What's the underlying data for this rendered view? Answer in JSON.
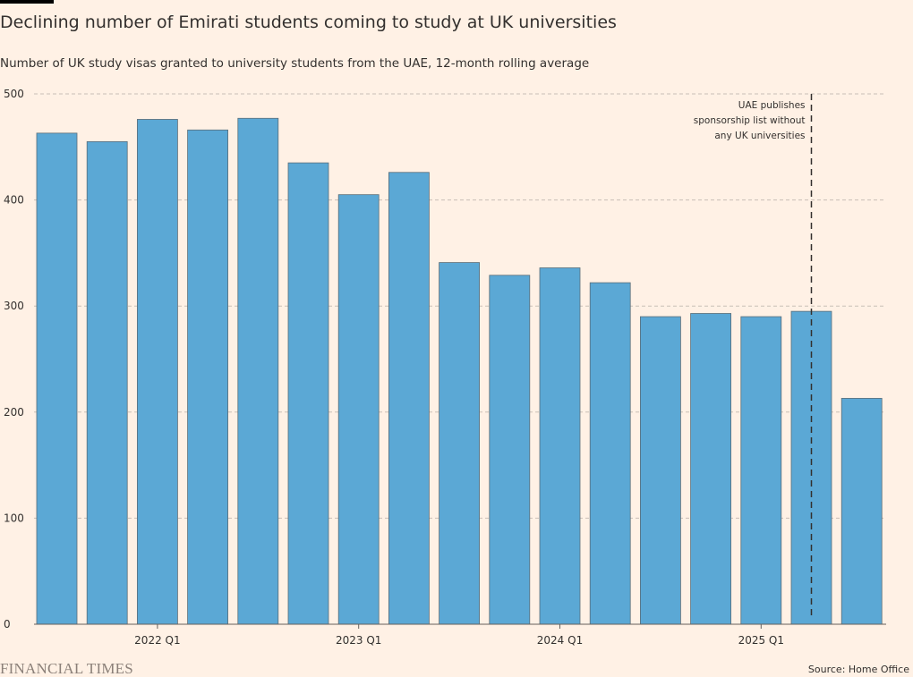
{
  "title": "Declining number of Emirati students coming to study at UK universities",
  "subtitle": "Number of UK study visas granted to university students from the UAE, 12-month rolling average",
  "source": "Source: Home Office",
  "logo": "FINANCIAL TIMES",
  "chart_data": {
    "type": "bar",
    "categories": [
      "2021 Q3",
      "2021 Q4",
      "2022 Q1",
      "2022 Q2",
      "2022 Q3",
      "2022 Q4",
      "2023 Q1",
      "2023 Q2",
      "2023 Q3",
      "2023 Q4",
      "2024 Q1",
      "2024 Q2",
      "2024 Q3",
      "2024 Q4",
      "2025 Q1",
      "2025 Q2",
      "2025 Q3"
    ],
    "values": [
      463,
      455,
      476,
      466,
      477,
      435,
      405,
      426,
      341,
      329,
      336,
      322,
      290,
      293,
      290,
      295,
      213
    ],
    "x_tick_labels": [
      "2022 Q1",
      "2023 Q1",
      "2024 Q1",
      "2025 Q1"
    ],
    "y_ticks": [
      0,
      100,
      200,
      300,
      400,
      500
    ],
    "ylim": [
      0,
      500
    ],
    "grid": true,
    "bar_color": "#5ba8d5",
    "annotation": {
      "category": "2025 Q2",
      "lines": [
        "UAE publishes",
        "sponsorship list without",
        "any UK universities"
      ]
    }
  }
}
